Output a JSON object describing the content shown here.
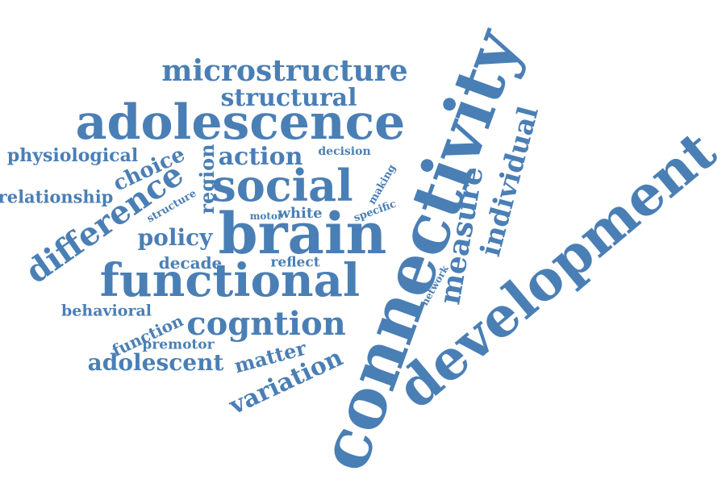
{
  "word_color": "#4a7fb5",
  "background_color": "#ffffff",
  "words": {
    "connectivity": "connectivity",
    "development": "development",
    "brain": "brain",
    "adolescence": "adolescence",
    "functional": "functional",
    "social": "social",
    "microstructure": "microstructure",
    "structural": "structural",
    "cogntion": "cogntion",
    "individual": "individual",
    "measure": "measure",
    "difference": "difference",
    "action": "action",
    "region": "region",
    "policy": "policy",
    "choice": "choice",
    "physiological": "physiological",
    "relationship": "relationship",
    "adolescent": "adolescent",
    "variation": "variation",
    "matter": "matter",
    "function": "function",
    "premotor": "premotor",
    "behavioral": "behavioral",
    "decade": "decade",
    "reflect": "reflect",
    "white": "white",
    "motor": "motor",
    "structure": "structure",
    "decision": "decision",
    "making": "making",
    "specific": "specific",
    "network": "network"
  }
}
